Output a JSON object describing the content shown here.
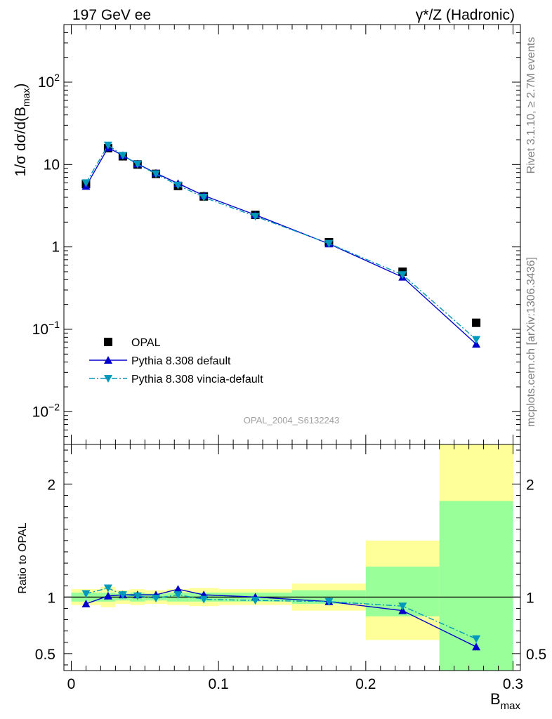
{
  "header": {
    "left_title": "197 GeV ee",
    "right_title": "γ*/Z (Hadronic)"
  },
  "side_labels": {
    "rivet": "Rivet 3.1.10, ≥ 2.7M events",
    "mcplots": "mcplots.cern.ch [arXiv:1306.3436]"
  },
  "watermark": "OPAL_2004_S6132243",
  "axes": {
    "ylabel_main": "1/σ dσ/d(B",
    "ylabel_main_sub": "max",
    "ylabel_main_end": ")",
    "ylabel_ratio": "Ratio to OPAL",
    "xlabel": "B",
    "xlabel_sub": "max"
  },
  "chart_data": [
    {
      "type": "line",
      "panel": "main",
      "yscale": "log",
      "xlim": [
        -0.005,
        0.305
      ],
      "ylim": [
        0.004,
        500
      ],
      "y_ticks": [
        {
          "value": 0.01,
          "base": "10",
          "exp": "−2"
        },
        {
          "value": 0.1,
          "base": "10",
          "exp": "−1"
        },
        {
          "value": 1,
          "base": "1",
          "exp": ""
        },
        {
          "value": 10,
          "base": "10",
          "exp": ""
        },
        {
          "value": 100,
          "base": "10",
          "exp": "2"
        }
      ],
      "legend_position": "bottom-left",
      "series": [
        {
          "name": "OPAL",
          "kind": "data",
          "color": "#000000",
          "x": [
            0.01,
            0.025,
            0.035,
            0.045,
            0.0575,
            0.0725,
            0.09,
            0.125,
            0.175,
            0.225,
            0.275
          ],
          "y": [
            5.8,
            15.8,
            12.6,
            10.0,
            7.7,
            5.5,
            4.1,
            2.45,
            1.14,
            0.5,
            0.12
          ]
        },
        {
          "name": "Pythia 8.308 default",
          "kind": "line",
          "color": "#0000cc",
          "x": [
            0.01,
            0.025,
            0.035,
            0.045,
            0.0575,
            0.0725,
            0.09,
            0.125,
            0.175,
            0.225,
            0.275
          ],
          "y": [
            5.45,
            16.0,
            12.9,
            10.2,
            7.85,
            5.9,
            4.2,
            2.45,
            1.09,
            0.43,
            0.066
          ]
        },
        {
          "name": "Pythia 8.308 vincia-default",
          "kind": "dashdot",
          "color": "#0099bb",
          "x": [
            0.01,
            0.025,
            0.035,
            0.045,
            0.0575,
            0.0725,
            0.09,
            0.125,
            0.175,
            0.225,
            0.275
          ],
          "y": [
            6.0,
            17.2,
            12.9,
            10.1,
            7.7,
            5.6,
            4.0,
            2.35,
            1.1,
            0.46,
            0.075
          ]
        }
      ]
    },
    {
      "type": "line",
      "panel": "ratio",
      "xlim": [
        -0.005,
        0.305
      ],
      "ylim": [
        0.35,
        2.35
      ],
      "y_ticks": [
        0.5,
        1,
        2
      ],
      "x_ticks": [
        0,
        0.1,
        0.2,
        0.3
      ],
      "x_tick_labels": [
        "0",
        "0.1",
        "0.2",
        "0.3"
      ],
      "bands": {
        "edges": [
          0.0,
          0.02,
          0.03,
          0.04,
          0.05,
          0.065,
          0.08,
          0.1,
          0.15,
          0.2,
          0.25,
          0.3
        ],
        "yellow": [
          [
            0.93,
            1.07
          ],
          [
            0.91,
            1.09
          ],
          [
            0.94,
            1.06
          ],
          [
            0.93,
            1.07
          ],
          [
            0.94,
            1.06
          ],
          [
            0.93,
            1.07
          ],
          [
            0.92,
            1.08
          ],
          [
            0.93,
            1.07
          ],
          [
            0.88,
            1.12
          ],
          [
            0.62,
            1.5
          ],
          [
            0.35,
            2.35
          ]
        ],
        "green": [
          [
            0.96,
            1.04
          ],
          [
            0.96,
            1.04
          ],
          [
            0.97,
            1.03
          ],
          [
            0.96,
            1.04
          ],
          [
            0.97,
            1.03
          ],
          [
            0.96,
            1.04
          ],
          [
            0.96,
            1.04
          ],
          [
            0.96,
            1.04
          ],
          [
            0.94,
            1.06
          ],
          [
            0.83,
            1.27
          ],
          [
            0.35,
            1.85
          ]
        ],
        "yellow_color": "#ffff99",
        "green_color": "#99ff99"
      },
      "series": [
        {
          "name": "Pythia 8.308 default",
          "kind": "line",
          "color": "#0000cc",
          "x": [
            0.01,
            0.025,
            0.035,
            0.045,
            0.0575,
            0.0725,
            0.09,
            0.125,
            0.175,
            0.225,
            0.275
          ],
          "y": [
            0.94,
            1.01,
            1.02,
            1.02,
            1.02,
            1.07,
            1.02,
            1.0,
            0.96,
            0.88,
            0.56
          ]
        },
        {
          "name": "Pythia 8.308 vincia-default",
          "kind": "dashdot",
          "color": "#0099bb",
          "x": [
            0.01,
            0.025,
            0.035,
            0.045,
            0.0575,
            0.0725,
            0.09,
            0.125,
            0.175,
            0.225,
            0.275
          ],
          "y": [
            1.03,
            1.08,
            1.02,
            1.01,
            0.99,
            1.02,
            0.98,
            0.97,
            0.96,
            0.92,
            0.63
          ]
        }
      ]
    }
  ]
}
